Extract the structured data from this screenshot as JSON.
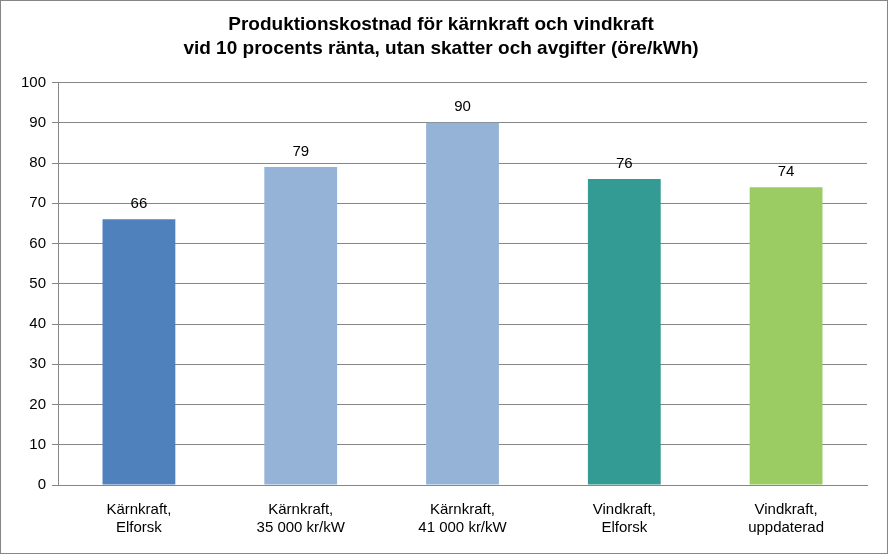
{
  "chart_data": {
    "type": "bar",
    "title": [
      "Produktionskostnad för kärnkraft och vindkraft",
      "vid 10 procents ränta, utan skatter och avgifter (öre/kWh)"
    ],
    "categories": [
      [
        "Kärnkraft,",
        "Elforsk"
      ],
      [
        "Kärnkraft,",
        "35 000 kr/kW"
      ],
      [
        "Kärnkraft,",
        "41 000 kr/kW"
      ],
      [
        "Vindkraft,",
        "Elforsk"
      ],
      [
        "Vindkraft,",
        "uppdaterad"
      ]
    ],
    "values": [
      66,
      79,
      90,
      76,
      74
    ],
    "colors": [
      "#4f81bd",
      "#95b3d7",
      "#95b3d7",
      "#339a94",
      "#9bcb63"
    ],
    "ylim": [
      0,
      100
    ],
    "yticks": [
      0,
      10,
      20,
      30,
      40,
      50,
      60,
      70,
      80,
      90,
      100
    ],
    "grid": true,
    "data_labels": true
  }
}
